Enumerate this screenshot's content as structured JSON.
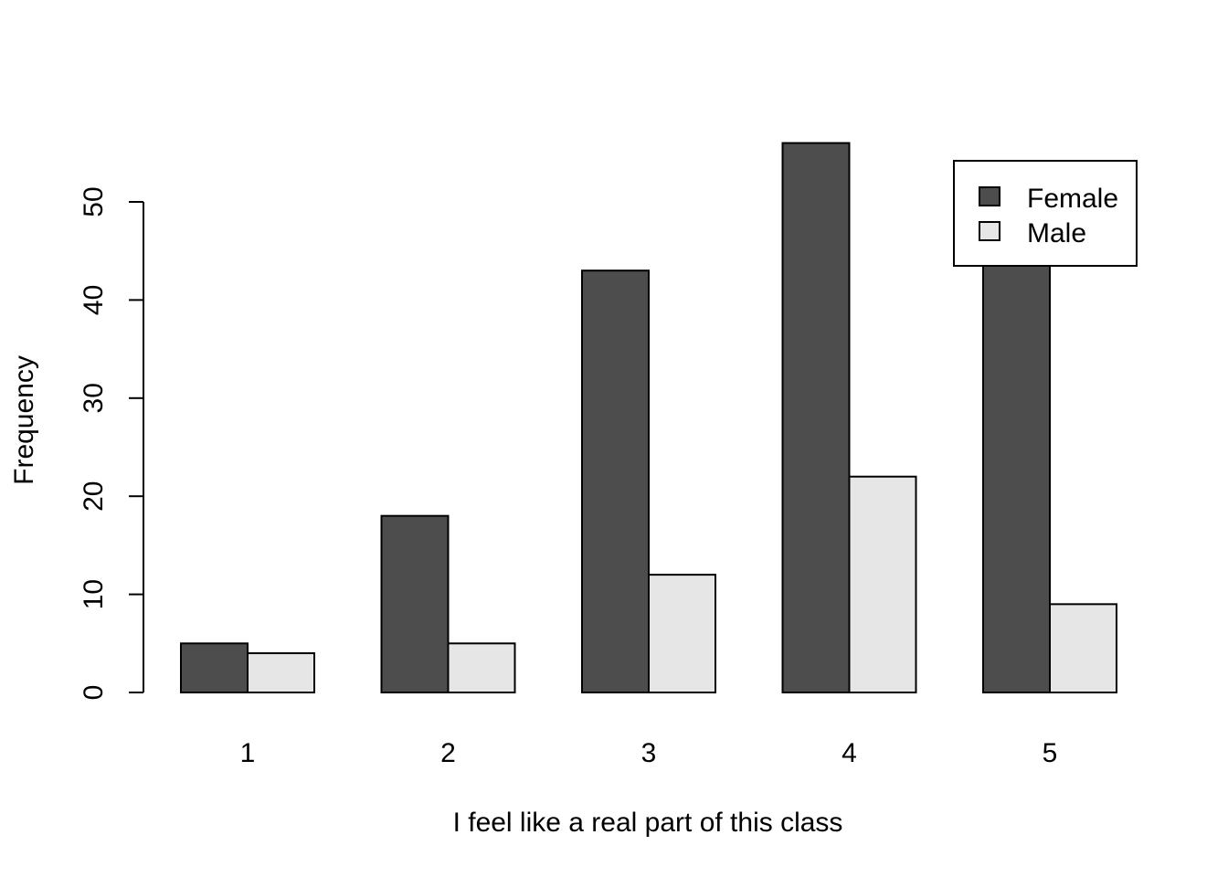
{
  "chart_data": {
    "type": "bar",
    "title": "",
    "xlabel": "I feel like a real part of this class",
    "ylabel": "Frequency",
    "categories": [
      "1",
      "2",
      "3",
      "4",
      "5"
    ],
    "series": [
      {
        "name": "Female",
        "values": [
          5,
          18,
          43,
          56,
          44
        ],
        "color": "#4d4d4d"
      },
      {
        "name": "Male",
        "values": [
          4,
          5,
          12,
          22,
          9
        ],
        "color": "#e6e6e6"
      }
    ],
    "ylim": [
      0,
      56
    ],
    "yticks": [
      "0",
      "10",
      "20",
      "30",
      "40",
      "50"
    ],
    "grid": false,
    "legend": "top-right"
  }
}
